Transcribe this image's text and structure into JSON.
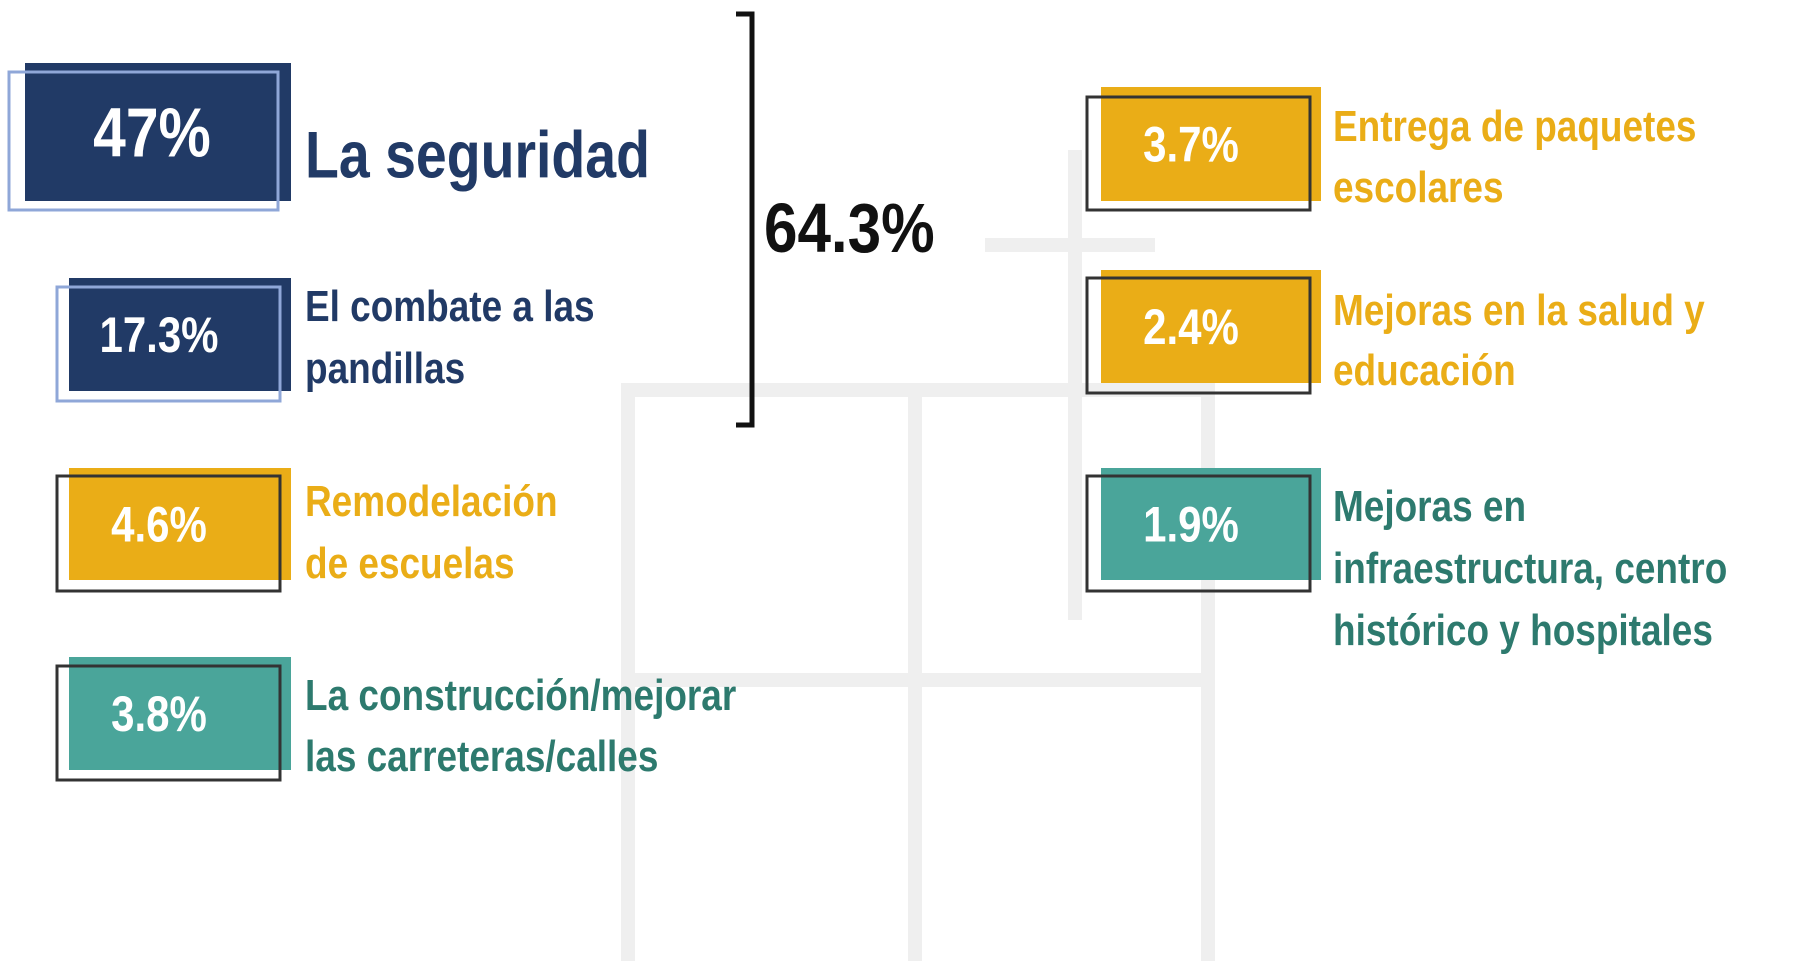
{
  "total": "64.3%",
  "items": [
    {
      "value": "47%",
      "label": [
        "La seguridad"
      ]
    },
    {
      "value": "17.3%",
      "label": [
        "El combate a las",
        "pandillas"
      ]
    },
    {
      "value": "4.6%",
      "label": [
        "Remodelación",
        "de escuelas"
      ]
    },
    {
      "value": "3.8%",
      "label": [
        "La construcción/mejorar",
        "las carreteras/calles"
      ]
    },
    {
      "value": "3.7%",
      "label": [
        "Entrega de paquetes",
        "escolares"
      ]
    },
    {
      "value": "2.4%",
      "label": [
        "Mejoras en la salud y",
        "educación"
      ]
    },
    {
      "value": "1.9%",
      "label": [
        "Mejoras en",
        "infraestructura, centro",
        "histórico y hospitales"
      ]
    }
  ]
}
